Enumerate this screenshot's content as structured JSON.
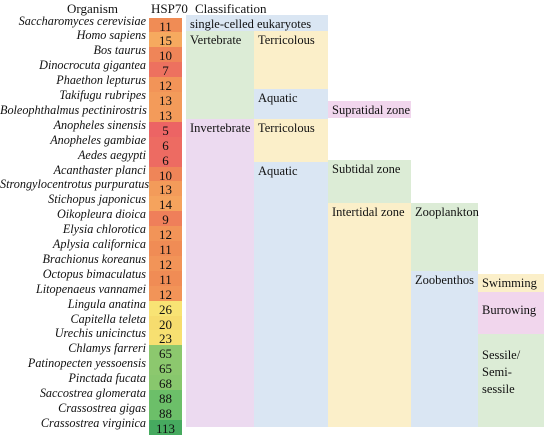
{
  "headers": {
    "organism": "Organism",
    "hsp70": "HSP70",
    "classification": "Classification"
  },
  "rows": [
    {
      "organism": "Saccharomyces cerevisiae",
      "hsp70": "11"
    },
    {
      "organism": "Homo sapiens",
      "hsp70": "15"
    },
    {
      "organism": "Bos taurus",
      "hsp70": "10"
    },
    {
      "organism": "Dinocrocuta gigantea",
      "hsp70": "7"
    },
    {
      "organism": "Phaethon lepturus",
      "hsp70": "12"
    },
    {
      "organism": "Takifugu rubripes",
      "hsp70": "13"
    },
    {
      "organism": "Boleophthalmus pectinirostris",
      "hsp70": "13"
    },
    {
      "organism": "Anopheles sinensis",
      "hsp70": "5"
    },
    {
      "organism": "Anopheles gambiae",
      "hsp70": "6"
    },
    {
      "organism": "Aedes aegypti",
      "hsp70": "6"
    },
    {
      "organism": "Acanthaster planci",
      "hsp70": "10"
    },
    {
      "organism": "Strongylocentrotus purpuratus",
      "hsp70": "13"
    },
    {
      "organism": "Stichopus japonicus",
      "hsp70": "14"
    },
    {
      "organism": "Oikopleura dioica",
      "hsp70": "9"
    },
    {
      "organism": "Elysia chlorotica",
      "hsp70": "12"
    },
    {
      "organism": "Aplysia californica",
      "hsp70": "11"
    },
    {
      "organism": "Brachionus koreanus",
      "hsp70": "12"
    },
    {
      "organism": "Octopus bimaculatus",
      "hsp70": "11"
    },
    {
      "organism": "Litopenaeus vannamei",
      "hsp70": "12"
    },
    {
      "organism": "Lingula anatina",
      "hsp70": "26"
    },
    {
      "organism": "Capitella teleta",
      "hsp70": "20"
    },
    {
      "organism": "Urechis unicinctus",
      "hsp70": "23"
    },
    {
      "organism": "Chlamys farreri",
      "hsp70": "65"
    },
    {
      "organism": "Patinopecten yessoensis",
      "hsp70": "65"
    },
    {
      "organism": "Pinctada fucata",
      "hsp70": "68"
    },
    {
      "organism": "Saccostrea glomerata",
      "hsp70": "88"
    },
    {
      "organism": "Crassostrea gigas",
      "hsp70": "88"
    },
    {
      "organism": "Crassostrea virginica",
      "hsp70": "113"
    }
  ],
  "classification": {
    "single_celled": "single-celled eukaryotes",
    "vertebrate": "Vertebrate",
    "invertebrate": "Invertebrate",
    "terricolous_1": "Terricolous",
    "aquatic_1": "Aquatic",
    "terricolous_2": "Terricolous",
    "aquatic_2": "Aquatic",
    "supratidal": "Supratidal zone",
    "subtidal": "Subtidal zone",
    "intertidal": "Intertidal zone",
    "zooplankton": "Zooplankton",
    "zoobenthos": "Zoobenthos",
    "swimming": "Swimming",
    "burrowing": "Burrowing",
    "sessile_1": "Sessile/",
    "sessile_2": "Semi-",
    "sessile_3": "sessile"
  },
  "colors": {
    "single_celled": "#dae6f3",
    "vertebrate": "#dcecd6",
    "invertebrate": "#ecdaf0",
    "terricolous": "#fbefc9",
    "aquatic": "#dae6f3",
    "supratidal": "#f1d6ed",
    "subtidal": "#dcecd6",
    "intertidal": "#fbefc9",
    "zooplankton": "#dcecd6",
    "zoobenthos": "#dae6f3",
    "swimming": "#fbefc9",
    "burrowing": "#f1d6ed",
    "sessile": "#dcecd6"
  }
}
